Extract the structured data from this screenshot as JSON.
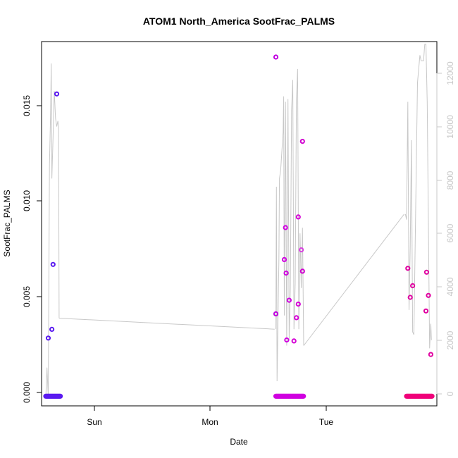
{
  "chart_data": {
    "type": "scatter",
    "title": "ATOM1 North_America SootFrac_PALMS",
    "xlabel": "Date",
    "ylabel": "SootFrac_PALMS",
    "x_ticks": [
      "Sun",
      "Mon",
      "Tue"
    ],
    "y_ticks": [
      "0.000",
      "0.005",
      "0.010",
      "0.015"
    ],
    "y_right_ticks": [
      "0",
      "2000",
      "4000",
      "6000",
      "8000",
      "10000",
      "12000"
    ],
    "x_range_days_from_sat_noon": [
      -0.385,
      2.88
    ],
    "ylim": [
      -0.0005,
      0.0183
    ],
    "y_right_lim": [
      -300,
      13000
    ],
    "grid": false,
    "points": [
      {
        "x": -0.33,
        "y": 0.003,
        "color": "#5a1af0"
      },
      {
        "x": -0.3,
        "y": 0.00345,
        "color": "#5a1af0"
      },
      {
        "x": -0.29,
        "y": 0.0068,
        "color": "#5a1af0"
      },
      {
        "x": -0.26,
        "y": 0.0156,
        "color": "#5a1af0"
      },
      {
        "x": 1.55,
        "y": 0.0175,
        "color": "#c000e0"
      },
      {
        "x": 1.55,
        "y": 0.00425,
        "color": "#c000e0"
      },
      {
        "x": 1.62,
        "y": 0.00705,
        "color": "#d000e0"
      },
      {
        "x": 1.63,
        "y": 0.0087,
        "color": "#d000e0"
      },
      {
        "x": 1.635,
        "y": 0.00635,
        "color": "#d000e0"
      },
      {
        "x": 1.64,
        "y": 0.0029,
        "color": "#d000e0"
      },
      {
        "x": 1.66,
        "y": 0.00495,
        "color": "#d000e0"
      },
      {
        "x": 1.7,
        "y": 0.00285,
        "color": "#d500d5"
      },
      {
        "x": 1.72,
        "y": 0.00405,
        "color": "#d500d5"
      },
      {
        "x": 1.735,
        "y": 0.00475,
        "color": "#d500d5"
      },
      {
        "x": 1.735,
        "y": 0.00925,
        "color": "#d500d5"
      },
      {
        "x": 1.76,
        "y": 0.00755,
        "color": "#d840e0"
      },
      {
        "x": 1.77,
        "y": 0.00645,
        "color": "#d000d0"
      },
      {
        "x": 1.77,
        "y": 0.01315,
        "color": "#d000d0"
      },
      {
        "x": 2.64,
        "y": 0.0066,
        "color": "#e000a0"
      },
      {
        "x": 2.66,
        "y": 0.0051,
        "color": "#e000a0"
      },
      {
        "x": 2.68,
        "y": 0.0057,
        "color": "#e000a0"
      },
      {
        "x": 2.79,
        "y": 0.0044,
        "color": "#e000a0"
      },
      {
        "x": 2.795,
        "y": 0.0064,
        "color": "#e000a0"
      },
      {
        "x": 2.81,
        "y": 0.0052,
        "color": "#e000a0"
      },
      {
        "x": 2.83,
        "y": 0.00215,
        "color": "#e000a0"
      }
    ],
    "zero_runs": [
      {
        "x_start": -0.35,
        "x_end": -0.23,
        "color": "#5a1af0"
      },
      {
        "x_start": 1.55,
        "x_end": 1.78,
        "color": "#d000e0"
      },
      {
        "x_start": 2.63,
        "x_end": 2.84,
        "color": "#f0007a"
      }
    ],
    "line_series": {
      "color": "#c8c8c8",
      "axis": "right",
      "points": [
        [
          -0.35,
          0
        ],
        [
          -0.34,
          1100
        ],
        [
          -0.33,
          0
        ],
        [
          -0.32,
          8500
        ],
        [
          -0.31,
          10500
        ],
        [
          -0.305,
          12200
        ],
        [
          -0.3,
          8000
        ],
        [
          -0.29,
          9500
        ],
        [
          -0.28,
          11200
        ],
        [
          -0.27,
          10200
        ],
        [
          -0.26,
          9900
        ],
        [
          -0.25,
          10100
        ],
        [
          -0.245,
          9800
        ],
        [
          -0.24,
          2900
        ],
        [
          1.55,
          2500
        ],
        [
          1.555,
          7700
        ],
        [
          1.56,
          600
        ],
        [
          1.575,
          5000
        ],
        [
          1.58,
          8000
        ],
        [
          1.59,
          8300
        ],
        [
          1.61,
          9700
        ],
        [
          1.615,
          11000
        ],
        [
          1.62,
          3000
        ],
        [
          1.63,
          10800
        ],
        [
          1.64,
          1900
        ],
        [
          1.65,
          10900
        ],
        [
          1.66,
          2100
        ],
        [
          1.67,
          4000
        ],
        [
          1.68,
          10500
        ],
        [
          1.69,
          11600
        ],
        [
          1.7,
          2500
        ],
        [
          1.71,
          4200
        ],
        [
          1.72,
          10900
        ],
        [
          1.73,
          12000
        ],
        [
          1.74,
          2500
        ],
        [
          1.75,
          6000
        ],
        [
          1.76,
          4000
        ],
        [
          1.77,
          6200
        ],
        [
          1.78,
          1900
        ],
        [
          2.62,
          6700
        ],
        [
          2.63,
          6500
        ],
        [
          2.64,
          10800
        ],
        [
          2.65,
          3200
        ],
        [
          2.66,
          5500
        ],
        [
          2.67,
          9400
        ],
        [
          2.68,
          2400
        ],
        [
          2.69,
          2300
        ],
        [
          2.72,
          11500
        ],
        [
          2.74,
          12500
        ],
        [
          2.75,
          12300
        ],
        [
          2.77,
          12300
        ],
        [
          2.78,
          12900
        ],
        [
          2.79,
          12900
        ],
        [
          2.8,
          10800
        ],
        [
          2.82,
          1800
        ],
        [
          2.83,
          2700
        ],
        [
          2.835,
          2100
        ]
      ],
      "connectors": [
        [
          [
            -0.24,
            2900
          ],
          [
            1.54,
            2500
          ]
        ],
        [
          [
            1.78,
            1900
          ],
          [
            2.61,
            6700
          ]
        ]
      ]
    }
  }
}
